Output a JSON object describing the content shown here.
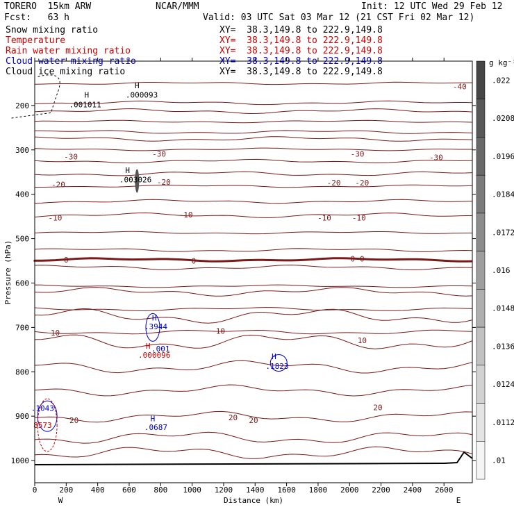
{
  "header": {
    "model": "TORERO  15km ARW",
    "center": "NCAR/MMM",
    "init": "Init: 12 UTC Wed 29 Feb 12",
    "fcst": "Fcst:   63 h",
    "valid": "Valid: 03 UTC Sat 03 Mar 12 (21 CST Fri 02 Mar 12)",
    "fields": [
      {
        "name": "Snow mixing ratio",
        "xy": "XY=  38.3,149.8 to 222.9,149.8",
        "color": "#000000"
      },
      {
        "name": "Temperature",
        "xy": "XY=  38.3,149.8 to 222.9,149.8",
        "color": "#cc0000"
      },
      {
        "name": "Rain water mixing ratio",
        "xy": "XY=  38.3,149.8 to 222.9,149.8",
        "color": "#cc0000"
      },
      {
        "name": "Cloud water mixing ratio",
        "xy": "XY=  38.3,149.8 to 222.9,149.8",
        "color": "#0000cc"
      },
      {
        "name": "Cloud ice mixing ratio",
        "xy": "XY=  38.3,149.8 to 222.9,149.8",
        "color": "#000000"
      }
    ]
  },
  "chart_data": {
    "type": "line",
    "xlabel": "Distance (km)",
    "ylabel": "Pressure (hPa)",
    "xlim": [
      0,
      2780
    ],
    "ylim": [
      1050,
      100
    ],
    "x_ticks": [
      0,
      200,
      400,
      600,
      800,
      1000,
      1200,
      1400,
      1600,
      1800,
      2000,
      2200,
      2400,
      2600
    ],
    "y_ticks": [
      200,
      300,
      400,
      500,
      600,
      700,
      800,
      900,
      1000
    ],
    "x_end_labels": [
      "W",
      "E"
    ],
    "colorbar": {
      "unit": "g kg⁻¹",
      "labels": [
        ".022",
        ".0208",
        ".0196",
        ".0184",
        ".0172",
        ".016",
        ".0148",
        ".0136",
        ".0124",
        ".0112",
        ".01"
      ]
    },
    "series": [
      {
        "name": "Temperature",
        "color": "#7a1a1a",
        "contour_labels": [
          {
            "text": "-40",
            "x": 2700,
            "y": 157
          },
          {
            "text": "-30",
            "x": 230,
            "y": 315
          },
          {
            "text": "-30",
            "x": 790,
            "y": 309
          },
          {
            "text": "-30",
            "x": 2050,
            "y": 309
          },
          {
            "text": "-30",
            "x": 2550,
            "y": 317
          },
          {
            "text": "-20",
            "x": 150,
            "y": 378
          },
          {
            "text": "-20",
            "x": 820,
            "y": 372
          },
          {
            "text": "-20",
            "x": 1900,
            "y": 374
          },
          {
            "text": "-20",
            "x": 2080,
            "y": 374
          },
          {
            "text": "-10",
            "x": 130,
            "y": 453
          },
          {
            "text": "-10",
            "x": 960,
            "y": 446
          },
          {
            "text": "-10",
            "x": 1840,
            "y": 453
          },
          {
            "text": "-10",
            "x": 2060,
            "y": 453
          },
          {
            "text": "0",
            "x": 200,
            "y": 548
          },
          {
            "text": "0",
            "x": 1010,
            "y": 550
          },
          {
            "text": "0",
            "x": 2020,
            "y": 545
          },
          {
            "text": "0",
            "x": 2080,
            "y": 545
          },
          {
            "text": "10",
            "x": 130,
            "y": 712
          },
          {
            "text": "10",
            "x": 1180,
            "y": 708
          },
          {
            "text": "10",
            "x": 2080,
            "y": 729
          },
          {
            "text": "20",
            "x": 250,
            "y": 909
          },
          {
            "text": "20",
            "x": 1260,
            "y": 903
          },
          {
            "text": "20",
            "x": 1390,
            "y": 909
          },
          {
            "text": "20",
            "x": 2180,
            "y": 880
          }
        ]
      },
      {
        "name": "Cloud ice mixing ratio",
        "color": "#000000",
        "annotations": [
          {
            "text": "H",
            "x": 330,
            "y": 176
          },
          {
            "text": ".001011",
            "x": 320,
            "y": 198
          },
          {
            "text": "H",
            "x": 650,
            "y": 155
          },
          {
            "text": ".000093",
            "x": 680,
            "y": 176
          }
        ]
      },
      {
        "name": "Snow mixing ratio",
        "color": "#000000",
        "annotations": [
          {
            "text": "H",
            "x": 590,
            "y": 346
          },
          {
            "text": ".003026",
            "x": 640,
            "y": 367
          }
        ]
      },
      {
        "name": "Cloud water mixing ratio",
        "color": "#0000cc",
        "annotations": [
          {
            "text": "H",
            "x": 760,
            "y": 678
          },
          {
            "text": ".3944",
            "x": 770,
            "y": 698
          },
          {
            "text": ".001",
            "x": 800,
            "y": 748
          },
          {
            "text": "H",
            "x": 1520,
            "y": 765
          },
          {
            "text": ".1823",
            "x": 1540,
            "y": 787
          },
          {
            "text": "H",
            "x": 750,
            "y": 905
          },
          {
            "text": ".0687",
            "x": 770,
            "y": 925
          },
          {
            "text": ".1043",
            "x": 50,
            "y": 882
          }
        ]
      },
      {
        "name": "Rain water mixing ratio",
        "color": "#cc0000",
        "annotations": [
          {
            "text": "H",
            "x": 720,
            "y": 742
          },
          {
            "text": ".000096",
            "x": 760,
            "y": 762
          },
          {
            "text": "8573",
            "x": 50,
            "y": 920
          }
        ]
      }
    ]
  }
}
